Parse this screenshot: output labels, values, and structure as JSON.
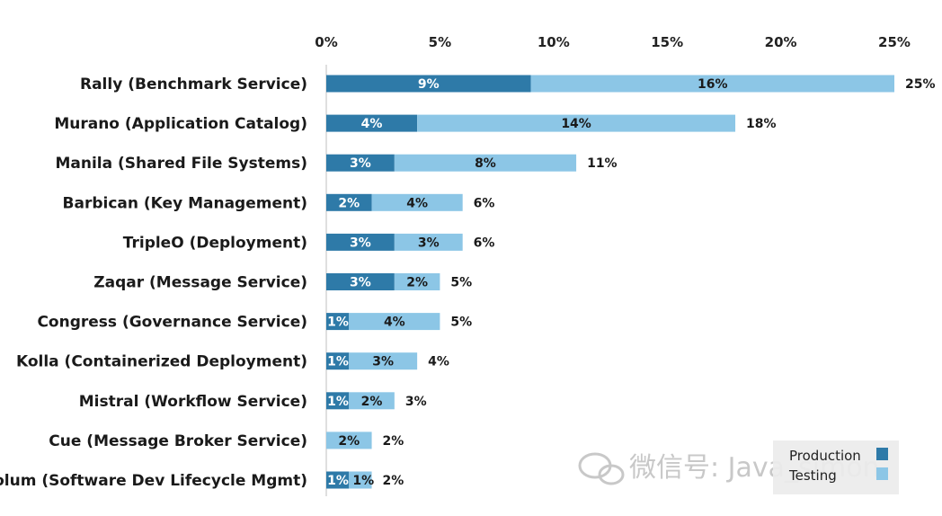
{
  "chart_data": {
    "type": "bar",
    "orientation": "horizontal",
    "stacked": true,
    "categories": [
      "Rally (Benchmark Service)",
      "Murano (Application Catalog)",
      "Manila (Shared File Systems)",
      "Barbican (Key Management)",
      "TripleO (Deployment)",
      "Zaqar (Message Service)",
      "Congress (Governance Service)",
      "Kolla (Containerized Deployment)",
      "Mistral (Workflow Service)",
      "Cue (Message Broker Service)",
      "Solum (Software Dev Lifecycle Mgmt)"
    ],
    "series": [
      {
        "name": "Production",
        "color": "#2e7aa8",
        "values": [
          9,
          4,
          3,
          2,
          3,
          3,
          1,
          1,
          1,
          0,
          1
        ],
        "labels": [
          "9%",
          "4%",
          "3%",
          "2%",
          "3%",
          "3%",
          "1%",
          "1%",
          "1%",
          "",
          "1%"
        ]
      },
      {
        "name": "Testing",
        "color": "#8cc6e6",
        "values": [
          16,
          14,
          8,
          4,
          3,
          2,
          4,
          3,
          2,
          2,
          1
        ],
        "labels": [
          "16%",
          "14%",
          "8%",
          "4%",
          "3%",
          "2%",
          "4%",
          "3%",
          "2%",
          "2%",
          "1%"
        ]
      }
    ],
    "totals": [
      "25%",
      "18%",
      "11%",
      "6%",
      "6%",
      "5%",
      "5%",
      "4%",
      "3%",
      "2%",
      "2%"
    ],
    "x_ticks": [
      0,
      5,
      10,
      15,
      20,
      25
    ],
    "x_tick_labels": [
      "0%",
      "5%",
      "10%",
      "15%",
      "20%",
      "25%"
    ],
    "xlim": [
      0,
      25
    ],
    "axis_position": "top",
    "legend": {
      "position": "bottom-right",
      "entries": [
        "Production",
        "Testing"
      ]
    },
    "watermark": "微信号: Java_simon"
  }
}
